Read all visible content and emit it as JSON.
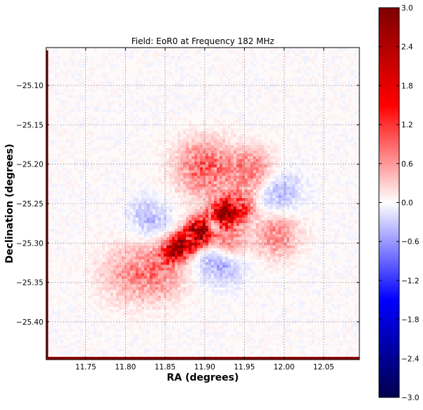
{
  "chart_data": {
    "type": "heatmap",
    "title": "Field: EoR0 at Frequency 182 MHz",
    "xlabel": "RA (degrees)",
    "ylabel": "Declination (degrees)",
    "xlim": [
      11.7,
      12.095
    ],
    "ylim": [
      -25.448,
      -25.052
    ],
    "xticks": [
      11.75,
      11.8,
      11.85,
      11.9,
      11.95,
      12.0,
      12.05
    ],
    "xtick_labels": [
      "11.75",
      "11.80",
      "11.85",
      "11.90",
      "11.95",
      "12.00",
      "12.05"
    ],
    "yticks": [
      -25.1,
      -25.15,
      -25.2,
      -25.25,
      -25.3,
      -25.35,
      -25.4
    ],
    "ytick_labels": [
      "−25.10",
      "−25.15",
      "−25.20",
      "−25.25",
      "−25.30",
      "−25.35",
      "−25.40"
    ],
    "grid": true,
    "colormap": "seismic",
    "colorbar": {
      "vmin": -3.0,
      "vmax": 3.0,
      "ticks": [
        3.0,
        2.4,
        1.8,
        1.2,
        0.6,
        0.0,
        -0.6,
        -1.2,
        -1.8,
        -2.4,
        -3.0
      ],
      "tick_labels": [
        "3.0",
        "2.4",
        "1.8",
        "1.2",
        "0.6",
        "0.0",
        "−0.6",
        "−1.2",
        "−1.8",
        "−2.4",
        "−3.0"
      ]
    },
    "features": [
      {
        "ra": 11.895,
        "dec": -25.285,
        "value": 2.8,
        "sigma": 0.012
      },
      {
        "ra": 11.875,
        "dec": -25.3,
        "value": 2.2,
        "sigma": 0.01
      },
      {
        "ra": 11.925,
        "dec": -25.262,
        "value": 2.4,
        "sigma": 0.012
      },
      {
        "ra": 11.86,
        "dec": -25.31,
        "value": 1.6,
        "sigma": 0.01
      },
      {
        "ra": 11.945,
        "dec": -25.255,
        "value": 1.2,
        "sigma": 0.012
      },
      {
        "ra": 11.91,
        "dec": -25.278,
        "value": -1.4,
        "sigma": 0.006
      },
      {
        "ra": 11.88,
        "dec": -25.295,
        "value": -1.6,
        "sigma": 0.005
      },
      {
        "ra": 11.94,
        "dec": -25.252,
        "value": -1.0,
        "sigma": 0.005
      },
      {
        "ra": 11.9,
        "dec": -25.205,
        "value": 0.9,
        "sigma": 0.025
      },
      {
        "ra": 11.96,
        "dec": -25.21,
        "value": 0.8,
        "sigma": 0.02
      },
      {
        "ra": 11.99,
        "dec": -25.29,
        "value": 0.7,
        "sigma": 0.02
      },
      {
        "ra": 11.84,
        "dec": -25.335,
        "value": 0.7,
        "sigma": 0.025
      },
      {
        "ra": 11.8,
        "dec": -25.34,
        "value": 0.4,
        "sigma": 0.025
      },
      {
        "ra": 11.92,
        "dec": -25.32,
        "value": -0.6,
        "sigma": 0.02
      },
      {
        "ra": 11.99,
        "dec": -25.235,
        "value": -0.5,
        "sigma": 0.02
      },
      {
        "ra": 11.83,
        "dec": -25.27,
        "value": -0.4,
        "sigma": 0.018
      },
      {
        "ra": 11.93,
        "dec": -25.3,
        "value": 0.9,
        "sigma": 0.015
      }
    ]
  }
}
